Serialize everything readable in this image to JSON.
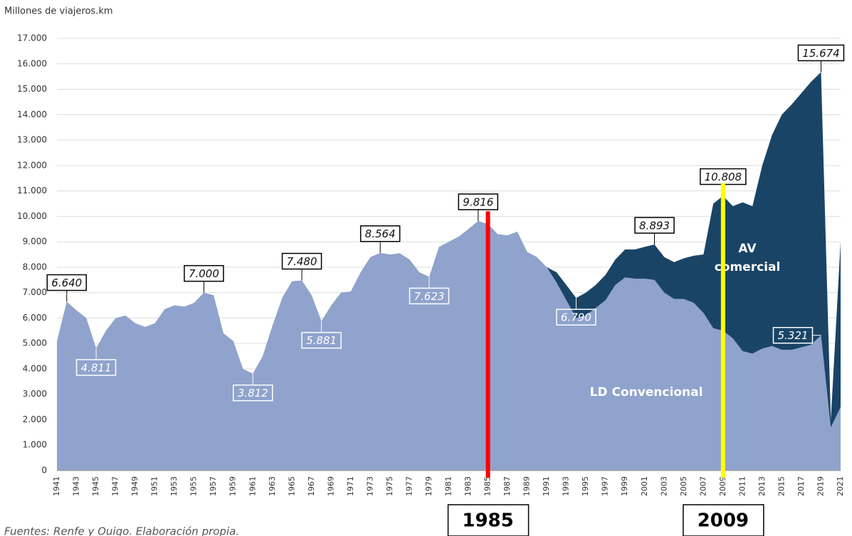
{
  "chart_data": {
    "type": "stacked-area",
    "y_axis_label": "Millones de viajeros.km",
    "x": [
      1941,
      1942,
      1943,
      1944,
      1945,
      1946,
      1947,
      1948,
      1949,
      1950,
      1951,
      1952,
      1953,
      1954,
      1955,
      1956,
      1957,
      1958,
      1959,
      1960,
      1961,
      1962,
      1963,
      1964,
      1965,
      1966,
      1967,
      1968,
      1969,
      1970,
      1971,
      1972,
      1973,
      1974,
      1975,
      1976,
      1977,
      1978,
      1979,
      1980,
      1981,
      1982,
      1983,
      1984,
      1985,
      1986,
      1987,
      1988,
      1989,
      1990,
      1991,
      1992,
      1993,
      1994,
      1995,
      1996,
      1997,
      1998,
      1999,
      2000,
      2001,
      2002,
      2003,
      2004,
      2005,
      2006,
      2007,
      2008,
      2009,
      2010,
      2011,
      2012,
      2013,
      2014,
      2015,
      2016,
      2017,
      2018,
      2019,
      2020,
      2021
    ],
    "xlim": [
      1941,
      2021
    ],
    "xticks": [
      1941,
      1943,
      1945,
      1947,
      1949,
      1951,
      1953,
      1955,
      1957,
      1959,
      1961,
      1963,
      1965,
      1967,
      1969,
      1971,
      1973,
      1975,
      1977,
      1979,
      1981,
      1983,
      1985,
      1987,
      1989,
      1991,
      1993,
      1995,
      1997,
      1999,
      2001,
      2003,
      2005,
      2007,
      2009,
      2011,
      2013,
      2015,
      2017,
      2019,
      2021
    ],
    "series": [
      {
        "name": "LD Convencional",
        "color": "#8fa3cc",
        "values": [
          5100,
          6640,
          6300,
          6000,
          4811,
          5500,
          6000,
          6100,
          5800,
          5650,
          5800,
          6350,
          6500,
          6450,
          6600,
          7000,
          6900,
          5400,
          5100,
          4000,
          3812,
          4500,
          5700,
          6800,
          7450,
          7480,
          6900,
          5881,
          6500,
          7000,
          7050,
          7800,
          8400,
          8564,
          8500,
          8550,
          8300,
          7800,
          7623,
          8800,
          9000,
          9200,
          9500,
          9816,
          9700,
          9300,
          9250,
          9400,
          8600,
          8400,
          8000,
          7400,
          6700,
          6000,
          6100,
          6400,
          6700,
          7300,
          7600,
          7550,
          7550,
          7500,
          7000,
          6750,
          6750,
          6600,
          6200,
          5600,
          5500,
          5200,
          4700,
          4600,
          4800,
          4900,
          4750,
          4750,
          4850,
          4950,
          5321,
          1700,
          2500
        ]
      },
      {
        "name": "AV comercial",
        "color": "#1a4466",
        "values": [
          null,
          null,
          null,
          null,
          null,
          null,
          null,
          null,
          null,
          null,
          null,
          null,
          null,
          null,
          null,
          null,
          null,
          null,
          null,
          null,
          null,
          null,
          null,
          null,
          null,
          null,
          null,
          null,
          null,
          null,
          null,
          null,
          null,
          null,
          null,
          null,
          null,
          null,
          null,
          null,
          null,
          null,
          null,
          null,
          null,
          null,
          null,
          null,
          null,
          null,
          0,
          400,
          600,
          790,
          900,
          900,
          1000,
          1000,
          1100,
          1150,
          1250,
          1393,
          1400,
          1450,
          1600,
          1850,
          2300,
          4900,
          5308,
          5200,
          5850,
          5800,
          7200,
          8300,
          9250,
          9650,
          10000,
          10350,
          10353,
          300,
          6500
        ]
      }
    ],
    "ylim": [
      0,
      17000
    ],
    "yticks": [
      {
        "value": 0,
        "label": "0"
      },
      {
        "value": 1000,
        "label": "1.000"
      },
      {
        "value": 2000,
        "label": "2.000"
      },
      {
        "value": 3000,
        "label": "3.000"
      },
      {
        "value": 4000,
        "label": "4.000"
      },
      {
        "value": 5000,
        "label": "5.000"
      },
      {
        "value": 6000,
        "label": "6.000"
      },
      {
        "value": 7000,
        "label": "7.000"
      },
      {
        "value": 8000,
        "label": "8.000"
      },
      {
        "value": 9000,
        "label": "9.000"
      },
      {
        "value": 10000,
        "label": "10.000"
      },
      {
        "value": 11000,
        "label": "11.000"
      },
      {
        "value": 12000,
        "label": "12.000"
      },
      {
        "value": 13000,
        "label": "13.000"
      },
      {
        "value": 14000,
        "label": "14.000"
      },
      {
        "value": 15000,
        "label": "15.000"
      },
      {
        "value": 16000,
        "label": "16.000"
      },
      {
        "value": 17000,
        "label": "17.000"
      }
    ],
    "grid": true,
    "annotations": [
      {
        "x": 1942,
        "value": 6640,
        "label": "6.640",
        "position": "above"
      },
      {
        "x": 1945,
        "value": 4811,
        "label": "4.811",
        "position": "below"
      },
      {
        "x": 1956,
        "value": 7000,
        "label": "7.000",
        "position": "above"
      },
      {
        "x": 1961,
        "value": 3812,
        "label": "3.812",
        "position": "below"
      },
      {
        "x": 1966,
        "value": 7480,
        "label": "7.480",
        "position": "above"
      },
      {
        "x": 1968,
        "value": 5881,
        "label": "5.881",
        "position": "below"
      },
      {
        "x": 1974,
        "value": 8564,
        "label": "8.564",
        "position": "above"
      },
      {
        "x": 1979,
        "value": 7623,
        "label": "7.623",
        "position": "below"
      },
      {
        "x": 1984,
        "value": 9816,
        "label": "9.816",
        "position": "above"
      },
      {
        "x": 1994,
        "value": 6790,
        "label": "6.790",
        "position": "below"
      },
      {
        "x": 2002,
        "value": 8893,
        "label": "8.893",
        "position": "above"
      },
      {
        "x": 2009,
        "value": 10808,
        "label": "10.808",
        "position": "above"
      },
      {
        "x": 2019,
        "value": 15674,
        "label": "15.674",
        "position": "above"
      },
      {
        "x": 2019,
        "value": 5321,
        "label": "5.321",
        "position": "left"
      }
    ],
    "markers": [
      {
        "x": 1985,
        "label": "1985",
        "color": "#ff0000"
      },
      {
        "x": 2009,
        "label": "2009",
        "color": "#ffff00"
      }
    ],
    "area_labels": [
      "AV comercial",
      "LD Convencional"
    ],
    "source": "Fuentes: Renfe y Ouigo. Elaboración propia."
  }
}
